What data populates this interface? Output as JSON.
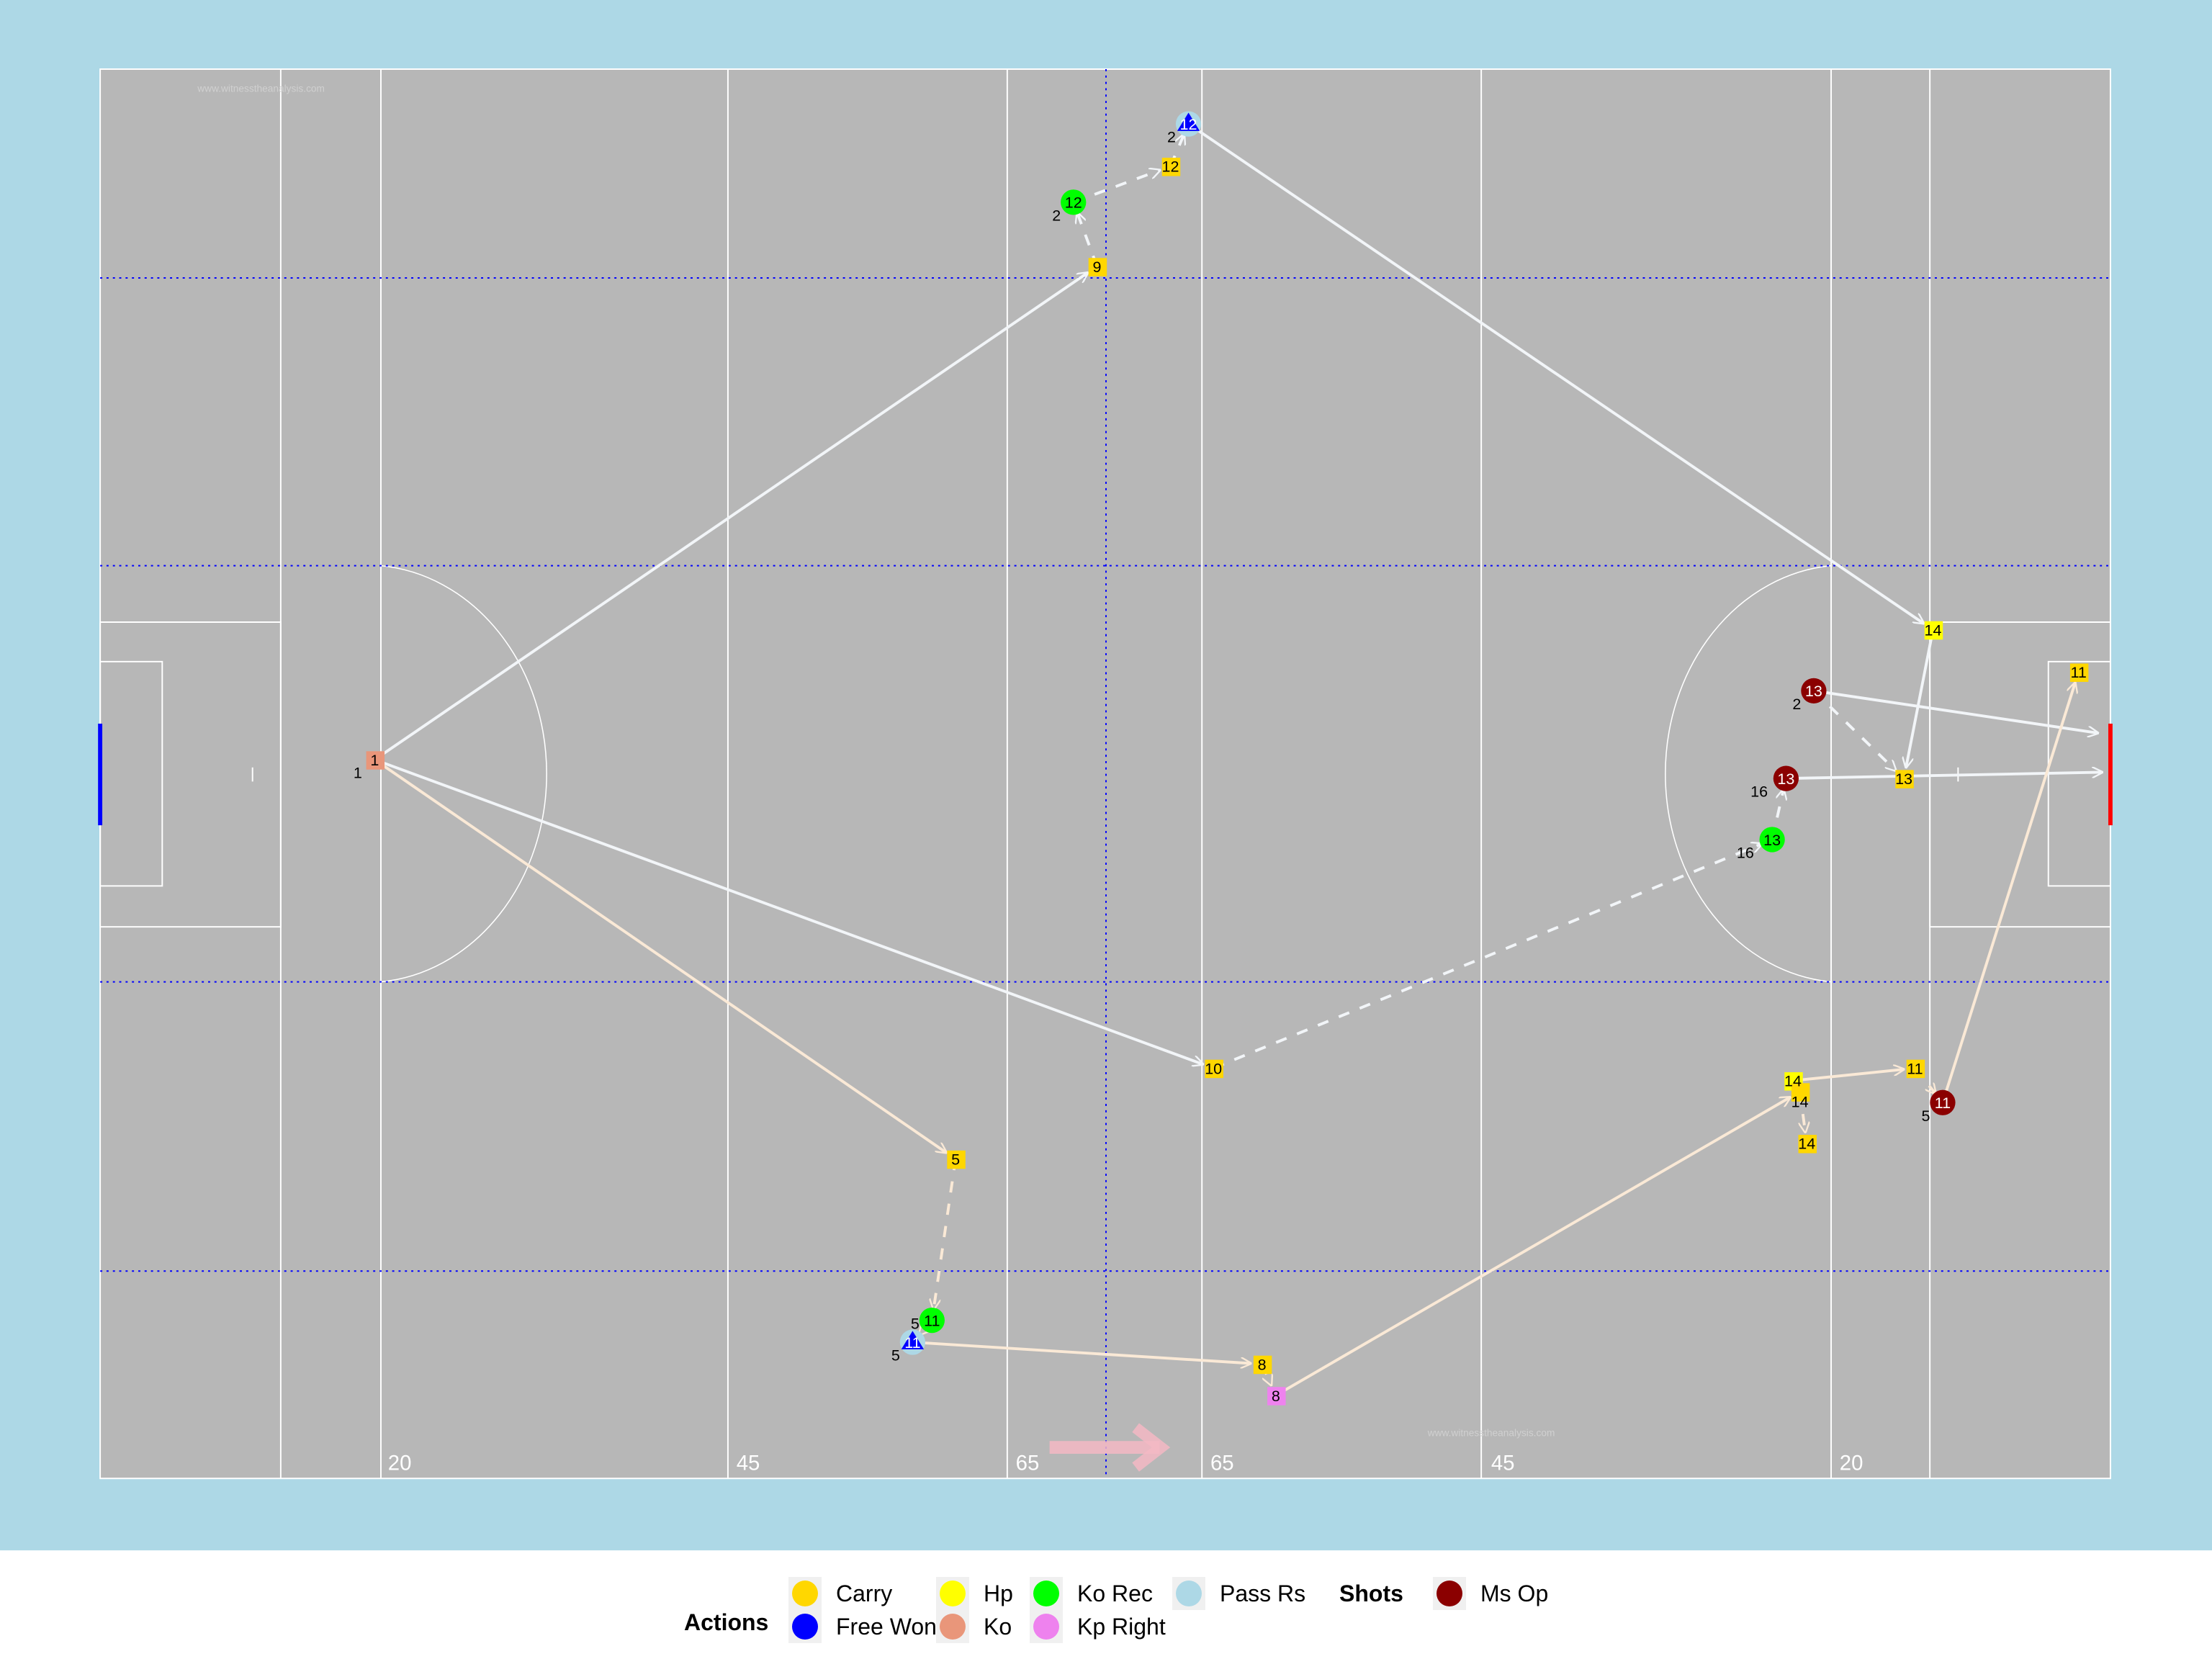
{
  "chart_data": {
    "type": "scatter",
    "subtype": "pitch-event-map",
    "pitch": {
      "length_m": 145,
      "width_m": 90,
      "background": "#add8e6",
      "surface": "#b7b7b7",
      "line_labels": [
        "20",
        "45",
        "65",
        "65",
        "45",
        "20"
      ],
      "watermark": "www.witnesstheanalysis.com",
      "direction": "right",
      "left_goal_color": "#0000ff",
      "right_goal_color": "#ff0000"
    },
    "events": [
      {
        "actions": [
          "Ko"
        ],
        "number": "1",
        "x": 19.8,
        "y": 44.1,
        "label": "1"
      },
      {
        "actions": [
          "Carry"
        ],
        "number": "9",
        "x": 71.9,
        "y": 12.6
      },
      {
        "actions": [
          "Ko Rec"
        ],
        "number": "12",
        "x": 70.2,
        "y": 8.5,
        "label": "2"
      },
      {
        "actions": [
          "Carry"
        ],
        "number": "12",
        "x": 77.2,
        "y": 6.2
      },
      {
        "actions": [
          "Pass Rs",
          "Free Won"
        ],
        "number": "12",
        "x": 78.5,
        "y": 3.5,
        "label": "2"
      },
      {
        "actions": [
          "Hp"
        ],
        "number": "14",
        "x": 132.2,
        "y": 35.8
      },
      {
        "actions": [
          "Ms Op"
        ],
        "number": "13",
        "x": 123.6,
        "y": 39.7,
        "label": "2"
      },
      {
        "actions": [
          "Carry"
        ],
        "number": "13",
        "x": 130.1,
        "y": 45.3
      },
      {
        "actions": [
          "Ms Op"
        ],
        "number": "13",
        "x": 121.6,
        "y": 45.3,
        "label": "16"
      },
      {
        "actions": [
          "Ko Rec"
        ],
        "number": "13",
        "x": 120.6,
        "y": 49.2,
        "label": "16"
      },
      {
        "actions": [
          "Carry"
        ],
        "number": "10",
        "x": 80.3,
        "y": 63.8
      },
      {
        "actions": [
          "Carry"
        ],
        "number": "5",
        "x": 61.7,
        "y": 69.6
      },
      {
        "actions": [
          "Ko Rec"
        ],
        "number": "11",
        "x": 60.0,
        "y": 79.9,
        "label": "5"
      },
      {
        "actions": [
          "Pass Rs",
          "Free Won"
        ],
        "number": "11",
        "x": 58.6,
        "y": 81.3,
        "label": "5"
      },
      {
        "actions": [
          "Carry"
        ],
        "number": "8",
        "x": 83.8,
        "y": 82.7
      },
      {
        "actions": [
          "Kp Right"
        ],
        "number": "8",
        "x": 84.8,
        "y": 84.7
      },
      {
        "actions": [
          "Hp"
        ],
        "number": "14",
        "x": 122.1,
        "y": 64.6
      },
      {
        "actions": [
          "Carry"
        ],
        "number": "14",
        "x": 122.6,
        "y": 65.3
      },
      {
        "actions": [
          "Carry"
        ],
        "number": "14",
        "x": 123.1,
        "y": 68.6
      },
      {
        "actions": [
          "Carry"
        ],
        "number": "11",
        "x": 130.9,
        "y": 63.8
      },
      {
        "actions": [
          "Ms Op"
        ],
        "number": "11",
        "x": 132.9,
        "y": 66.0,
        "label": "5"
      },
      {
        "actions": [
          "Carry"
        ],
        "number": "11",
        "x": 142.7,
        "y": 38.5
      }
    ],
    "links": [
      {
        "from": 0,
        "to": 1,
        "style": "solid",
        "color": "#f2f5f8"
      },
      {
        "from": 1,
        "to": 2,
        "style": "dashed",
        "color": "#f2f5f8"
      },
      {
        "from": 2,
        "to": 3,
        "style": "dashed",
        "color": "#f2f5f8"
      },
      {
        "from": 3,
        "to": 4,
        "style": "dashed",
        "color": "#f2f5f8"
      },
      {
        "from": 4,
        "to": 5,
        "style": "solid",
        "color": "#f2f5f8"
      },
      {
        "from": 5,
        "to": 7,
        "style": "solid",
        "color": "#f2f5f8"
      },
      {
        "from": 6,
        "to": 7,
        "style": "dashed",
        "color": "#f2f5f8"
      },
      {
        "from": 9,
        "to": 8,
        "style": "dashed",
        "color": "#f2f5f8"
      },
      {
        "from": 0,
        "to": 10,
        "style": "solid",
        "color": "#f2f5f8"
      },
      {
        "from": 10,
        "to": 9,
        "style": "dashed",
        "color": "#f2f5f8"
      },
      {
        "from": 6,
        "to_xy": [
          144.1,
          42.4
        ],
        "style": "solid",
        "color": "#f2f5f8"
      },
      {
        "from": 8,
        "to_xy": [
          144.4,
          44.9
        ],
        "style": "solid",
        "color": "#f2f5f8"
      },
      {
        "from": 0,
        "to": 11,
        "style": "solid",
        "color": "#fae9d6"
      },
      {
        "from": 11,
        "to": 12,
        "style": "dashed",
        "color": "#fae9d6"
      },
      {
        "from": 12,
        "to": 13,
        "style": "dashed",
        "color": "#fae9d6"
      },
      {
        "from": 13,
        "to": 14,
        "style": "solid",
        "color": "#fae9d6"
      },
      {
        "from": 14,
        "to": 15,
        "style": "dashed",
        "color": "#fae9d6"
      },
      {
        "from": 15,
        "to": 17,
        "style": "solid",
        "color": "#fae9d6"
      },
      {
        "from": 16,
        "to": 19,
        "style": "solid",
        "color": "#fae9d6"
      },
      {
        "from": 17,
        "to": 18,
        "style": "dashed",
        "color": "#fae9d6"
      },
      {
        "from": 19,
        "to": 20,
        "style": "dashed",
        "color": "#fae9d6"
      },
      {
        "from": 20,
        "to": 21,
        "style": "solid",
        "color": "#fae9d6"
      }
    ],
    "action_colors": {
      "Carry": "#ffd700",
      "Free Won": "#0000ff",
      "Hp": "#ffff00",
      "Ko": "#e9967a",
      "Ko Rec": "#00ff00",
      "Kp Right": "#ee82ee",
      "Pass Rs": "#add8e6",
      "Ms Op": "#8b0000"
    },
    "legend": {
      "placement": "bottom",
      "actions_title": "Actions",
      "actions": [
        "Carry",
        "Free Won",
        "Hp",
        "Ko",
        "Ko Rec",
        "Kp Right",
        "Pass Rs"
      ],
      "shots_title": "Shots",
      "shots": [
        "Ms Op"
      ]
    }
  }
}
